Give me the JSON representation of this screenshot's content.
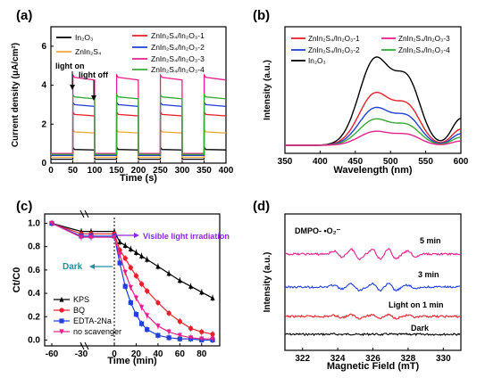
{
  "panels": {
    "a": {
      "label": "(a)",
      "xlabel": "Time (s)",
      "ylabel": "Current density (μA/cm²)",
      "xticks": [
        "0",
        "50",
        "100",
        "150",
        "200",
        "250",
        "300",
        "350",
        "400"
      ],
      "yticks": [
        "0",
        "2",
        "4",
        "6"
      ],
      "annot_on": "light on",
      "annot_off": "light off",
      "legend": [
        "In₂O₃",
        "ZnIn₂S₄",
        "ZnIn₂S₄/In₂O₃-1",
        "ZnIn₂S₄/In₂O₃-2",
        "ZnIn₂S₄/In₂O₃-3",
        "ZnIn₂S₄/In₂O₃-4"
      ]
    },
    "b": {
      "label": "(b)",
      "xlabel": "Wavelength (nm)",
      "ylabel": "Intensity (a.u.)",
      "xticks": [
        "350",
        "400",
        "450",
        "500",
        "550",
        "600"
      ],
      "legend": [
        "ZnIn₂S₄/In₂O₃-1",
        "ZnIn₂S₄/In₂O₃-3",
        "ZnIn₂S₄/In₂O₃-2",
        "ZnIn₂S₄/In₂O₃-4",
        "In₂O₃"
      ]
    },
    "c": {
      "label": "(c)",
      "xlabel": "Time (min)",
      "ylabel": "Ct/C0",
      "xticks": [
        "-60",
        "-30",
        "0",
        "20",
        "40",
        "60",
        "80"
      ],
      "yticks": [
        "0.0",
        "0.2",
        "0.4",
        "0.6",
        "0.8",
        "1.0"
      ],
      "annot_light": "Visible light irradiation",
      "annot_dark": "Dark",
      "legend": [
        "KPS",
        "BQ",
        "EDTA-2Na",
        "no scavenger"
      ]
    },
    "d": {
      "label": "(d)",
      "xlabel": "Magnetic Field (mT)",
      "ylabel": "Intensity (a.u.)",
      "xticks": [
        "322",
        "324",
        "326",
        "328",
        "330"
      ],
      "title": "DMPO- •O₂⁻",
      "traces": [
        "5 min",
        "3 min",
        "Light on 1 min",
        "Dark"
      ]
    }
  },
  "chart_data": [
    {
      "panel": "a",
      "type": "line",
      "xlim": [
        0,
        400
      ],
      "ylim": [
        0,
        7
      ],
      "light_on_periods": [
        [
          50,
          100
        ],
        [
          150,
          200
        ],
        [
          250,
          300
        ],
        [
          350,
          400
        ]
      ],
      "series": [
        {
          "name": "In₂O₃",
          "color": "#000000",
          "dark": 0.2,
          "light": 0.7
        },
        {
          "name": "ZnIn₂S₄",
          "color": "#f0a830",
          "dark": 0.3,
          "light": 1.6
        },
        {
          "name": "ZnIn₂S₄/In₂O₃-1",
          "color": "#e8202a",
          "dark": 0.45,
          "light": 2.5
        },
        {
          "name": "ZnIn₂S₄/In₂O₃-2",
          "color": "#2040d8",
          "dark": 0.4,
          "light": 3.0
        },
        {
          "name": "ZnIn₂S₄/In₂O₃-3",
          "color": "#e8208c",
          "dark": 0.5,
          "light": 4.4
        },
        {
          "name": "ZnIn₂S₄/In₂O₃-4",
          "color": "#38a838",
          "dark": 0.45,
          "light": 3.4
        }
      ]
    },
    {
      "panel": "b",
      "type": "line",
      "xlim": [
        350,
        600
      ],
      "peak_x": 478,
      "shoulder_x": 525,
      "series": [
        {
          "name": "In₂O₃",
          "color": "#000000",
          "peak": 1.0
        },
        {
          "name": "ZnIn₂S₄/In₂O₃-1",
          "color": "#e8202a",
          "peak": 0.6
        },
        {
          "name": "ZnIn₂S₄/In₂O₃-2",
          "color": "#2040d8",
          "peak": 0.43
        },
        {
          "name": "ZnIn₂S₄/In₂O₃-4",
          "color": "#38a838",
          "peak": 0.3
        },
        {
          "name": "ZnIn₂S₄/In₂O₃-3",
          "color": "#e8208c",
          "peak": 0.16
        }
      ]
    },
    {
      "panel": "c",
      "type": "line",
      "xlim": [
        -60,
        90
      ],
      "ylim": [
        -0.05,
        1.08
      ],
      "x": [
        -60,
        -30,
        -20,
        0,
        5,
        10,
        15,
        20,
        25,
        30,
        40,
        50,
        60,
        70,
        80,
        90
      ],
      "series": [
        {
          "name": "KPS",
          "color": "#000000",
          "marker": "triangle",
          "values": [
            1.0,
            0.93,
            0.93,
            0.93,
            0.84,
            0.81,
            0.78,
            0.75,
            0.72,
            0.69,
            0.63,
            0.57,
            0.51,
            0.46,
            0.41,
            0.36
          ]
        },
        {
          "name": "BQ",
          "color": "#e8202a",
          "marker": "circle",
          "values": [
            1.0,
            0.91,
            0.91,
            0.91,
            0.77,
            0.7,
            0.62,
            0.55,
            0.48,
            0.42,
            0.32,
            0.23,
            0.16,
            0.1,
            0.07,
            0.05
          ]
        },
        {
          "name": "EDTA-2Na",
          "color": "#2040d8",
          "marker": "square",
          "values": [
            1.0,
            0.89,
            0.89,
            0.89,
            0.66,
            0.46,
            0.32,
            0.22,
            0.14,
            0.09,
            0.04,
            0.02,
            0.01,
            0.01,
            0.0,
            0.0
          ]
        },
        {
          "name": "no scavenger",
          "color": "#e8208c",
          "marker": "triangle-down",
          "values": [
            1.0,
            0.88,
            0.88,
            0.88,
            0.73,
            0.58,
            0.45,
            0.36,
            0.28,
            0.21,
            0.12,
            0.07,
            0.04,
            0.02,
            0.01,
            0.01
          ]
        }
      ]
    },
    {
      "panel": "d",
      "type": "line",
      "xlim": [
        321,
        331
      ],
      "series": [
        {
          "name": "Dark",
          "color": "#000000",
          "amp": 0.05
        },
        {
          "name": "Light on 1 min",
          "color": "#e8202a",
          "amp": 0.35
        },
        {
          "name": "3 min",
          "color": "#2040d8",
          "amp": 0.7
        },
        {
          "name": "5 min",
          "color": "#e8208c",
          "amp": 1.0
        }
      ]
    }
  ]
}
